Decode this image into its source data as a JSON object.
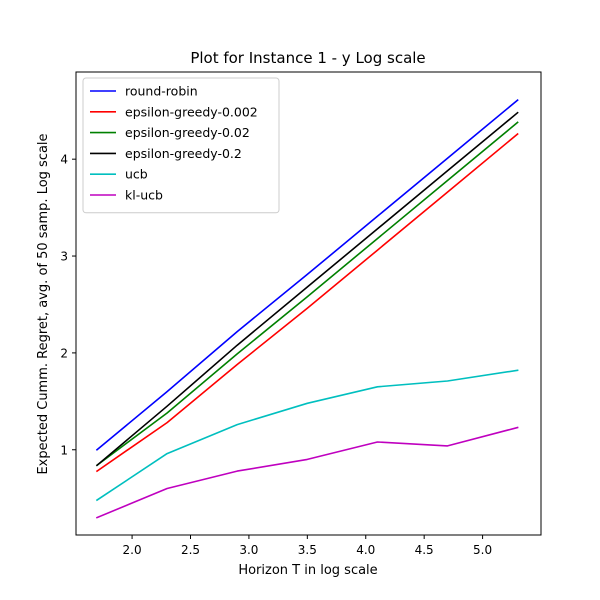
{
  "chart_data": {
    "type": "line",
    "title": "Plot for Instance 1 - y Log scale",
    "xlabel": "Horizon T in log scale",
    "ylabel": "Expected Cumm. Regret, avg. of 50 samp. Log scale",
    "xlim": [
      1.52,
      5.5
    ],
    "ylim": [
      0.12,
      4.9
    ],
    "xticks": [
      2.0,
      2.5,
      3.0,
      3.5,
      4.0,
      4.5,
      5.0
    ],
    "xtick_labels": [
      "2.0",
      "2.5",
      "3.0",
      "3.5",
      "4.0",
      "4.5",
      "5.0"
    ],
    "yticks": [
      1,
      2,
      3,
      4
    ],
    "ytick_labels": [
      "1",
      "2",
      "3",
      "4"
    ],
    "grid": false,
    "legend_position": "top-left",
    "x": [
      1.7,
      2.3,
      2.9,
      3.5,
      4.1,
      4.7,
      5.3
    ],
    "series": [
      {
        "name": "round-robin",
        "color": "#0000ff",
        "values": [
          1.0,
          1.6,
          2.22,
          2.81,
          3.41,
          4.01,
          4.61
        ]
      },
      {
        "name": "epsilon-greedy-0.002",
        "color": "#ff0000",
        "values": [
          0.78,
          1.28,
          1.88,
          2.46,
          3.06,
          3.66,
          4.26
        ]
      },
      {
        "name": "epsilon-greedy-0.02",
        "color": "#008000",
        "values": [
          0.84,
          1.38,
          1.99,
          2.58,
          3.18,
          3.78,
          4.38
        ]
      },
      {
        "name": "epsilon-greedy-0.2",
        "color": "#000000",
        "values": [
          0.84,
          1.45,
          2.08,
          2.68,
          3.28,
          3.88,
          4.48
        ]
      },
      {
        "name": "ucb",
        "color": "#00bfbf",
        "values": [
          0.48,
          0.96,
          1.26,
          1.48,
          1.65,
          1.71,
          1.82
        ]
      },
      {
        "name": "kl-ucb",
        "color": "#bf00bf",
        "values": [
          0.3,
          0.6,
          0.78,
          0.9,
          1.08,
          1.04,
          1.23
        ]
      }
    ]
  }
}
